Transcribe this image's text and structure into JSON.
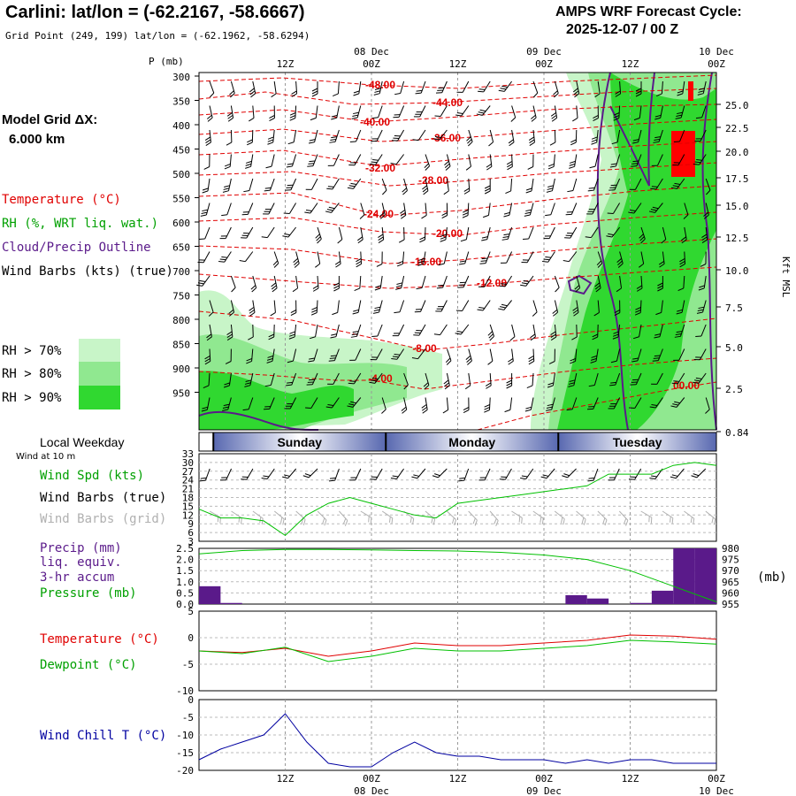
{
  "header": {
    "title": "Carlini:  lat/lon = (-62.2167, -58.6667)",
    "gridpoint": "Grid Point (249, 199) lat/lon = (-62.1962, -58.6294)",
    "model": "AMPS WRF Forecast Cycle:",
    "cycle": "2025-12-07 / 00  Z"
  },
  "left_labels": {
    "grid_line1": "Model Grid ΔX:",
    "grid_line2": "6.000 km",
    "temperature": "Temperature (°C)",
    "rh": "RH (%, WRT liq. wat.)",
    "cloud": "Cloud/Precip Outline",
    "wind": "Wind Barbs (kts) (true)",
    "rh70": "RH > 70%",
    "rh80": "RH > 80%",
    "rh90": "RH > 90%",
    "p_unit": "P (mb)",
    "right_unit": "Kft MSL"
  },
  "time_axis": {
    "top_hours": [
      "12Z",
      "00Z",
      "12Z",
      "00Z",
      "12Z",
      "00Z"
    ],
    "top_dates": [
      "08 Dec",
      "09 Dec",
      "10 Dec"
    ],
    "bottom_hours": [
      "12Z",
      "00Z",
      "12Z",
      "00Z",
      "12Z",
      "00Z"
    ],
    "bottom_dates": [
      "08 Dec",
      "09 Dec",
      "10 Dec"
    ]
  },
  "days": {
    "title": "Local Weekday",
    "wind_note": "Wind at 10 m",
    "labels": [
      "Sunday",
      "Monday",
      "Tuesday"
    ]
  },
  "panel_labels": {
    "wind_spd": "Wind Spd (kts)",
    "barbs_true": "Wind Barbs (true)",
    "barbs_grid": "Wind Barbs (grid)",
    "precip1": "Precip (mm)",
    "precip2": "liq. equiv.",
    "precip3": "3-hr accum",
    "pressure": "Pressure (mb)",
    "mb_unit": "(mb)",
    "temperature": "Temperature (°C)",
    "dewpoint": "Dewpoint (°C)",
    "windchill": "Wind Chill T (°C)"
  },
  "colors": {
    "temperature": "#e00000",
    "dewpoint": "#00c000",
    "precip": "#5a1a8a",
    "windchill": "#0000a0",
    "rh70": "#c8f5c8",
    "rh80": "#90e890",
    "rh90": "#30d830",
    "day_bar": "#6878b8"
  },
  "chart_data": [
    {
      "type": "heatmap",
      "title": "Time-height cross section",
      "x_hours": [
        0,
        12,
        24,
        36,
        48,
        60,
        72
      ],
      "pressure_ticks": [
        "300",
        "350",
        "400",
        "450",
        "500",
        "550",
        "600",
        "650",
        "700",
        "750",
        "800",
        "850",
        "900",
        "950"
      ],
      "height_ticks": [
        "25.0",
        "22.5",
        "20.0",
        "17.5",
        "15.0",
        "12.5",
        "10.0",
        "7.5",
        "5.0",
        "2.5",
        "0.84"
      ],
      "isotherm_labels": [
        "-48.00",
        "-44.00",
        "-40.00",
        "-36.00",
        "-32.00",
        "-28.00",
        "-24.00",
        "-20.00",
        "-16.00",
        "-12.00",
        "-8.00",
        "-4.00",
        "00.00"
      ]
    },
    {
      "type": "line",
      "name": "Wind Spd (kts)",
      "y_ticks": [
        "33",
        "30",
        "27",
        "24",
        "21",
        "18",
        "15",
        "12",
        "9",
        "6",
        "3"
      ],
      "ylim": [
        3,
        33
      ],
      "x": [
        0,
        3,
        6,
        9,
        12,
        15,
        18,
        21,
        24,
        27,
        30,
        33,
        36,
        39,
        42,
        45,
        48,
        51,
        54,
        57,
        60,
        63,
        66,
        69,
        72
      ],
      "values": [
        14,
        11,
        11,
        10,
        5,
        12,
        16,
        18,
        16,
        14,
        12,
        11,
        16,
        17,
        18,
        19,
        20,
        21,
        22,
        26,
        26,
        26,
        29,
        30,
        29
      ]
    },
    {
      "type": "bar",
      "name": "Precip (mm)",
      "y_ticks": [
        "2.5",
        "2.0",
        "1.5",
        "1.0",
        "0.5",
        "0.0"
      ],
      "ylim": [
        0,
        2.5
      ],
      "x": [
        0,
        3,
        6,
        9,
        12,
        15,
        18,
        21,
        24,
        27,
        30,
        33,
        36,
        39,
        42,
        45,
        48,
        51,
        54,
        57,
        60,
        63,
        66,
        69
      ],
      "values": [
        0.8,
        0.05,
        0,
        0,
        0,
        0,
        0,
        0,
        0,
        0,
        0,
        0,
        0,
        0,
        0,
        0,
        0,
        0.4,
        0.25,
        0,
        0.05,
        0.6,
        2.5,
        2.5
      ]
    },
    {
      "type": "line",
      "name": "Pressure (mb)",
      "y_ticks": [
        "980",
        "975",
        "970",
        "965",
        "960",
        "955"
      ],
      "ylim": [
        955,
        980
      ],
      "x": [
        0,
        6,
        12,
        18,
        24,
        30,
        36,
        42,
        48,
        54,
        60,
        66,
        72
      ],
      "values": [
        977.5,
        979,
        979.5,
        979.5,
        979.3,
        979,
        978.8,
        978.2,
        977,
        975,
        970,
        963,
        956
      ]
    },
    {
      "type": "line",
      "name": "Temperature (°C)",
      "y_ticks": [
        "5",
        "0",
        "-5",
        "-10"
      ],
      "ylim": [
        -10,
        5
      ],
      "x": [
        0,
        6,
        12,
        18,
        24,
        30,
        36,
        42,
        48,
        54,
        60,
        66,
        72
      ],
      "series": [
        {
          "name": "Temperature (°C)",
          "values": [
            -2.5,
            -2.8,
            -2,
            -3.5,
            -2.5,
            -1,
            -1.5,
            -1.5,
            -1,
            -0.5,
            0.5,
            0.3,
            -0.3
          ]
        },
        {
          "name": "Dewpoint (°C)",
          "values": [
            -2.5,
            -3,
            -1.8,
            -4.5,
            -3.5,
            -2,
            -2.5,
            -2.5,
            -2,
            -1.5,
            -0.5,
            -0.8,
            -1.2
          ]
        }
      ]
    },
    {
      "type": "line",
      "name": "Wind Chill T (°C)",
      "y_ticks": [
        "0",
        "-5",
        "-10",
        "-15",
        "-20"
      ],
      "ylim": [
        -20,
        0
      ],
      "x": [
        0,
        3,
        6,
        9,
        12,
        15,
        18,
        21,
        24,
        27,
        30,
        33,
        36,
        39,
        42,
        45,
        48,
        51,
        54,
        57,
        60,
        63,
        66,
        69,
        72
      ],
      "values": [
        -17,
        -14,
        -12,
        -10,
        -4,
        -12,
        -18,
        -19,
        -19,
        -15,
        -12,
        -15,
        -16,
        -16,
        -17,
        -17,
        -17,
        -18,
        -17,
        -18,
        -17,
        -17,
        -18,
        -18,
        -18
      ]
    }
  ]
}
